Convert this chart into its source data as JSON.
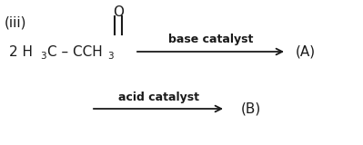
{
  "background_color": "#ffffff",
  "text_color": "#1a1a1a",
  "arrow_color": "#1a1a1a",
  "label_iii": "(iii)",
  "oxygen_label": "O",
  "arrow1_label": "base catalyst",
  "arrow2_label": "acid catalyst",
  "product_A_label": "(A)",
  "product_B_label": "(B)"
}
